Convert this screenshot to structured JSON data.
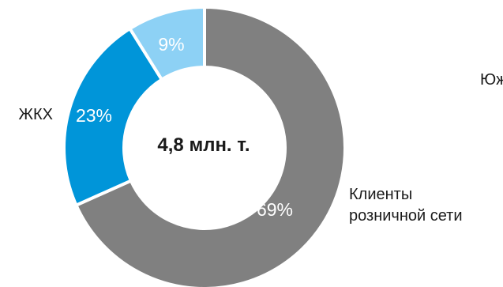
{
  "chart_data": {
    "type": "pie",
    "donut": true,
    "center_label": "4,8 млн. т.",
    "slices": [
      {
        "label": "Клиенты розничной сети",
        "label_lines": [
          "Клиенты",
          "розничной сети"
        ],
        "value": 69,
        "value_label": "69%",
        "color": "#808080"
      },
      {
        "label": "ЖКХ",
        "label_lines": [
          "ЖКХ"
        ],
        "value": 23,
        "value_label": "23%",
        "color": "#0095d9"
      },
      {
        "label": "Юж",
        "label_lines": [
          "Юж"
        ],
        "value": 9,
        "value_label": "9%",
        "color": "#8dd1f5"
      }
    ]
  }
}
